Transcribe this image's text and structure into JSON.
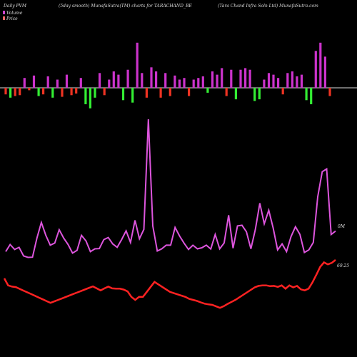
{
  "header": {
    "left": "Daily PVM",
    "center": "(5day smooth) MunafaSutra(TM) charts for TARACHAND_BE",
    "right": "(Tara Chand Infra Soln Ltd) MunafaSutra.com"
  },
  "legend": [
    {
      "label": "Volume",
      "color": "#cc44cc"
    },
    {
      "label": "Price",
      "color": "#ff6666"
    }
  ],
  "colors": {
    "background": "#000000",
    "up_bar": "#cc33cc",
    "down_bar_red": "#ee3322",
    "down_bar_green": "#33ee33",
    "volume_line": "#dd55dd",
    "price_line": "#ff2222",
    "baseline": "#dddddd"
  },
  "chart_data": {
    "type": "line",
    "volume_label": "0M",
    "price_label": "69.25",
    "pvm_bars": [
      -8,
      -12,
      -10,
      -9,
      12,
      -3,
      15,
      -10,
      -8,
      14,
      -12,
      10,
      -11,
      16,
      -9,
      -7,
      12,
      -20,
      -25,
      -12,
      18,
      -9,
      10,
      20,
      16,
      -15,
      22,
      -18,
      55,
      18,
      -12,
      25,
      20,
      -12,
      18,
      -10,
      15,
      10,
      12,
      -10,
      10,
      12,
      14,
      -6,
      20,
      16,
      24,
      -10,
      22,
      -14,
      22,
      24,
      22,
      -16,
      -14,
      10,
      18,
      16,
      12,
      -8,
      18,
      20,
      14,
      16,
      -15,
      -20,
      45,
      55,
      38,
      -10
    ],
    "volume": [
      0.92,
      1.25,
      1.02,
      1.12,
      0.72,
      0.65,
      0.66,
      1.55,
      2.28,
      1.68,
      1.22,
      1.32,
      1.94,
      1.55,
      1.25,
      0.85,
      0.98,
      1.68,
      1.42,
      0.92,
      1.05,
      1.06,
      1.48,
      1.58,
      1.28,
      1.12,
      1.48,
      1.89,
      1.35,
      2.38,
      1.52,
      1.96,
      7.1,
      2.12,
      0.95,
      1.05,
      1.22,
      1.22,
      2.05,
      1.65,
      1.32,
      1.02,
      1.22,
      1.05,
      1.1,
      1.22,
      1.04,
      1.72,
      1.05,
      1.32,
      2.62,
      1.08,
      2.12,
      2.15,
      1.85,
      1.05,
      1.95,
      3.18,
      2.22,
      2.85,
      2.02,
      1.0,
      1.28,
      0.92,
      1.62,
      2.08,
      1.72,
      0.88,
      1.0,
      1.35,
      3.48,
      4.65,
      4.78,
      1.72,
      1.88
    ],
    "price": [
      0.86,
      0.58,
      0.53,
      0.51,
      0.44,
      0.37,
      0.3,
      0.23,
      0.16,
      0.09,
      0.02,
      -0.05,
      -0.12,
      -0.06,
      0.0,
      0.06,
      0.12,
      0.18,
      0.24,
      0.3,
      0.36,
      0.42,
      0.48,
      0.54,
      0.46,
      0.38,
      0.46,
      0.53,
      0.46,
      0.45,
      0.45,
      0.41,
      0.34,
      0.12,
      0.0,
      0.12,
      0.12,
      0.32,
      0.52,
      0.72,
      0.62,
      0.52,
      0.42,
      0.32,
      0.27,
      0.22,
      0.17,
      0.12,
      0.04,
      0.0,
      -0.04,
      -0.1,
      -0.15,
      -0.18,
      -0.2,
      -0.26,
      -0.32,
      -0.25,
      -0.16,
      -0.08,
      0.0,
      0.1,
      0.2,
      0.3,
      0.4,
      0.5,
      0.56,
      0.58,
      0.58,
      0.55,
      0.56,
      0.52,
      0.58,
      0.45,
      0.58,
      0.5,
      0.56,
      0.42,
      0.38,
      0.45,
      0.7,
      1.0,
      1.32,
      1.5,
      1.42,
      1.48,
      1.6
    ]
  }
}
